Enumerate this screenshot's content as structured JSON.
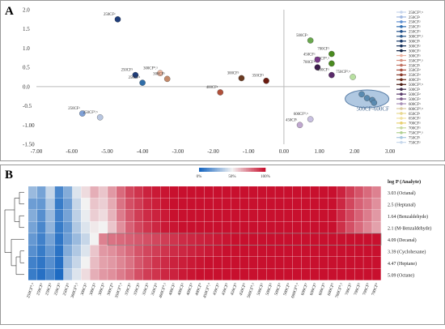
{
  "panel_labels": [
    "A",
    "B"
  ],
  "chart_data": [
    {
      "type": "scatter",
      "panel": "A",
      "xlim": [
        -7,
        3
      ],
      "ylim": [
        -1.5,
        2.0
      ],
      "x_ticks": [
        "-7.00",
        "-6.00",
        "-5.00",
        "-4.00",
        "-3.00",
        "-2.00",
        "-1.00",
        "0.00",
        "1.00",
        "2.00",
        "3.00"
      ],
      "y_ticks": [
        {
          "v": 2.0,
          "t": "2.0"
        },
        {
          "v": 1.5,
          "t": "1.5"
        },
        {
          "v": 1.0,
          "t": "1.0"
        },
        {
          "v": 0.5,
          "t": "0.5"
        },
        {
          "v": 0.0,
          "t": "0.0"
        },
        {
          "v": -0.5,
          "t": "-0.5"
        },
        {
          "v": -1.0,
          "t": "-1.00"
        },
        {
          "v": -1.5,
          "t": "-1.50"
        }
      ],
      "grid": false,
      "legend_position": "right",
      "points": [
        {
          "x": -4.7,
          "y": 1.75,
          "label": "250CF³",
          "color": "#1f3d7a"
        },
        {
          "x": -5.7,
          "y": -0.7,
          "label": "250CF¹",
          "color": "#7fa0d6"
        },
        {
          "x": -5.2,
          "y": -0.8,
          "label": "250CF⁰.⁵",
          "color": "#b8c6e0"
        },
        {
          "x": -4.2,
          "y": 0.3,
          "label": "250CF⁵",
          "color": "#1f3d7a"
        },
        {
          "x": -4.0,
          "y": 0.1,
          "label": "250CF²",
          "color": "#2f6da8"
        },
        {
          "x": -3.5,
          "y": 0.35,
          "label": "300CF⁰.⁵",
          "color": "#f0b8a0"
        },
        {
          "x": -3.3,
          "y": 0.2,
          "label": "300CF³",
          "color": "#c48a6a"
        },
        {
          "x": -1.8,
          "y": -0.15,
          "label": "400CF²",
          "color": "#b0503a"
        },
        {
          "x": -1.2,
          "y": 0.22,
          "label": "300CF⁵",
          "color": "#6b3b22"
        },
        {
          "x": -0.5,
          "y": 0.15,
          "label": "350CF²",
          "color": "#6b1b0f"
        },
        {
          "x": 0.75,
          "y": 1.2,
          "label": "500CF¹",
          "color": "#6aa84f"
        },
        {
          "x": 1.35,
          "y": 0.85,
          "label": "700CF²",
          "color": "#4a8a20"
        },
        {
          "x": 1.35,
          "y": 0.6,
          "label": "650CF⁰.⁵",
          "color": "#4a8a20"
        },
        {
          "x": 0.95,
          "y": 0.7,
          "label": "450CF³",
          "color": "#7a3b8a"
        },
        {
          "x": 0.95,
          "y": 0.5,
          "label": "700CF⁵",
          "color": "#3a1a4a"
        },
        {
          "x": 1.35,
          "y": 0.3,
          "label": "400CF⁵",
          "color": "#5a2a6a"
        },
        {
          "x": 1.95,
          "y": 0.25,
          "label": "750CF⁰.⁵",
          "color": "#b8e0a0"
        },
        {
          "x": 0.75,
          "y": -0.85,
          "label": "600CF⁰.⁵",
          "color": "#c8c0e0"
        },
        {
          "x": 0.45,
          "y": -1.0,
          "label": "450CF¹",
          "color": "#c0a8d0"
        },
        {
          "x": 2.2,
          "y": -0.2,
          "label": "",
          "color": "#5a8ab0"
        },
        {
          "x": 2.35,
          "y": -0.3,
          "label": "",
          "color": "#5a8ab0"
        },
        {
          "x": 2.5,
          "y": -0.35,
          "label": "",
          "color": "#5a8ab0"
        },
        {
          "x": 2.55,
          "y": -0.42,
          "label": "",
          "color": "#5a8ab0"
        }
      ],
      "cluster_label": "500CF-600CF",
      "legend": [
        {
          "label": "250CF⁰.⁵",
          "color": "#c6d4ec"
        },
        {
          "label": "250CF¹",
          "color": "#9fb7e0"
        },
        {
          "label": "250CF²",
          "color": "#5d8fd0"
        },
        {
          "label": "250CF³",
          "color": "#2f6db0"
        },
        {
          "label": "250CF⁵",
          "color": "#1f4f8a"
        },
        {
          "label": "300CF⁰.⁵",
          "color": "#2c5a8c"
        },
        {
          "label": "300CF¹",
          "color": "#1a3a6a"
        },
        {
          "label": "300CF²",
          "color": "#14305a"
        },
        {
          "label": "300CF³",
          "color": "#0f2244"
        },
        {
          "label": "300CF⁵",
          "color": "#e8b0a0"
        },
        {
          "label": "350CF⁰.⁵",
          "color": "#d69080"
        },
        {
          "label": "350CF¹",
          "color": "#c07060"
        },
        {
          "label": "350CF²",
          "color": "#a85040"
        },
        {
          "label": "350CF³",
          "color": "#8a3a2a"
        },
        {
          "label": "400CF⁵",
          "color": "#6a2a1a"
        },
        {
          "label": "500CF⁰.⁵",
          "color": "#4a1a10"
        },
        {
          "label": "500CF¹",
          "color": "#3a2a4a"
        },
        {
          "label": "500CF²",
          "color": "#5a3a6a"
        },
        {
          "label": "500CF³",
          "color": "#7a5a8a"
        },
        {
          "label": "600CF⁵",
          "color": "#a890b8"
        },
        {
          "label": "600CF⁰.⁵",
          "color": "#d8c8a0"
        },
        {
          "label": "650CF¹",
          "color": "#e8d890"
        },
        {
          "label": "650CF²",
          "color": "#f0e0a0"
        },
        {
          "label": "700CF³",
          "color": "#e8d070"
        },
        {
          "label": "700CF⁵",
          "color": "#c8d8a0"
        },
        {
          "label": "750CF⁰.⁵",
          "color": "#b0d090"
        },
        {
          "label": "750CF¹",
          "color": "#a8c8e0"
        },
        {
          "label": "750CF²",
          "color": "#c8d8ec"
        }
      ]
    },
    {
      "type": "heatmap",
      "panel": "B",
      "scale_labels": [
        "0%",
        "50%",
        "100%"
      ],
      "row_header": "log P (Analyte)",
      "rows": [
        "3.03 (Octanal)",
        "2.5 (Heptanal)",
        "1.64 (Benzaldehyde)",
        "2.1 (M-Benzaldehyde)",
        "4.09 (Decanal)",
        "3.39 (Cyclohexane)",
        "4.47 (Heptane)",
        "5.09 (Octane)"
      ],
      "columns": [
        "250CF⁰.⁵",
        "250CF¹",
        "250CF²",
        "250CF³",
        "250CF⁵",
        "300CF⁰.⁵",
        "300CF¹",
        "300CF²",
        "300CF³",
        "300CF⁵",
        "350CF⁰.⁵",
        "350CF¹",
        "350CF²",
        "350CF³",
        "350CF⁵",
        "400CF⁰.⁵",
        "400CF¹",
        "400CF²",
        "400CF³",
        "400CF⁵",
        "450CF⁰.⁵",
        "450CF¹",
        "450CF²",
        "450CF³",
        "450CF⁵",
        "500CF⁰.⁵",
        "500CF¹",
        "500CF²",
        "500CF³",
        "500CF⁵",
        "600CF⁰.⁵",
        "600CF¹",
        "600CF²",
        "600CF³",
        "600CF⁵",
        "700CF⁰.⁵",
        "700CF¹",
        "700CF²",
        "700CF³",
        "700CF⁵"
      ],
      "values": [
        [
          30,
          22,
          40,
          12,
          25,
          45,
          55,
          65,
          60,
          70,
          80,
          88,
          92,
          96,
          98,
          99,
          100,
          100,
          100,
          100,
          100,
          100,
          100,
          100,
          100,
          100,
          100,
          100,
          100,
          100,
          100,
          100,
          100,
          100,
          100,
          96,
          90,
          85,
          80,
          75
        ],
        [
          20,
          18,
          35,
          8,
          20,
          40,
          50,
          60,
          58,
          66,
          78,
          86,
          90,
          95,
          97,
          99,
          100,
          100,
          100,
          100,
          100,
          100,
          100,
          100,
          100,
          100,
          100,
          100,
          100,
          100,
          100,
          100,
          100,
          100,
          100,
          95,
          88,
          82,
          78,
          72
        ],
        [
          25,
          15,
          30,
          10,
          22,
          38,
          48,
          58,
          55,
          64,
          76,
          84,
          90,
          94,
          96,
          98,
          100,
          100,
          100,
          100,
          100,
          100,
          100,
          100,
          100,
          100,
          100,
          100,
          100,
          100,
          100,
          100,
          100,
          100,
          100,
          94,
          88,
          82,
          76,
          70
        ],
        [
          22,
          12,
          28,
          8,
          18,
          35,
          45,
          52,
          50,
          60,
          72,
          82,
          88,
          92,
          95,
          98,
          99,
          100,
          100,
          100,
          100,
          100,
          100,
          100,
          100,
          100,
          100,
          100,
          100,
          100,
          100,
          100,
          100,
          100,
          100,
          93,
          86,
          80,
          74,
          68
        ],
        [
          18,
          10,
          22,
          6,
          20,
          30,
          40,
          50,
          75,
          78,
          80,
          82,
          84,
          86,
          88,
          90,
          92,
          94,
          95,
          96,
          97,
          98,
          99,
          100,
          100,
          100,
          100,
          100,
          100,
          100,
          100,
          100,
          100,
          100,
          100,
          100,
          100,
          100,
          100,
          100
        ],
        [
          15,
          8,
          18,
          5,
          25,
          35,
          45,
          60,
          70,
          72,
          76,
          80,
          85,
          88,
          90,
          92,
          94,
          95,
          96,
          97,
          98,
          99,
          100,
          100,
          100,
          100,
          100,
          100,
          100,
          100,
          100,
          100,
          100,
          100,
          100,
          100,
          100,
          100,
          100,
          100
        ],
        [
          10,
          6,
          15,
          4,
          30,
          40,
          50,
          62,
          68,
          70,
          74,
          78,
          84,
          88,
          92,
          94,
          96,
          97,
          98,
          99,
          100,
          100,
          100,
          100,
          100,
          100,
          100,
          100,
          100,
          100,
          100,
          100,
          100,
          100,
          100,
          100,
          100,
          100,
          100,
          100
        ],
        [
          8,
          4,
          12,
          2,
          35,
          45,
          55,
          65,
          70,
          72,
          76,
          80,
          86,
          90,
          92,
          95,
          96,
          98,
          99,
          100,
          100,
          100,
          100,
          100,
          100,
          100,
          100,
          100,
          100,
          100,
          100,
          100,
          100,
          100,
          100,
          100,
          100,
          100,
          100,
          100
        ]
      ]
    }
  ]
}
